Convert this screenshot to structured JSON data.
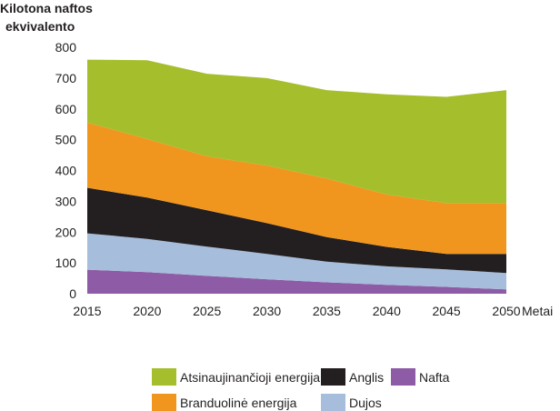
{
  "chart_data": {
    "type": "area",
    "stacked": true,
    "ylabel_lines": [
      "Kilotona naftos",
      "ekvivalento"
    ],
    "xlabel": "Metai",
    "x": [
      2015,
      2020,
      2025,
      2030,
      2035,
      2040,
      2045,
      2050
    ],
    "ylim": [
      0,
      800
    ],
    "yticks": [
      0,
      100,
      200,
      300,
      400,
      500,
      600,
      700,
      800
    ],
    "legend_position": "bottom",
    "series": [
      {
        "name": "Nafta",
        "color": "#8e5ba6",
        "values": [
          78,
          70,
          58,
          47,
          37,
          29,
          22,
          14
        ]
      },
      {
        "name": "Dujos",
        "color": "#a6bddb",
        "values": [
          118,
          108,
          95,
          82,
          67,
          60,
          57,
          53
        ]
      },
      {
        "name": "Anglis",
        "color": "#231f20",
        "values": [
          148,
          134,
          118,
          100,
          80,
          63,
          50,
          62
        ]
      },
      {
        "name": "Branduolinė energija",
        "color": "#f0961f",
        "values": [
          212,
          190,
          175,
          187,
          190,
          170,
          165,
          165
        ]
      },
      {
        "name": "Atsinaujinančioji energija",
        "color": "#a5be2c",
        "values": [
          204,
          256,
          268,
          284,
          287,
          325,
          345,
          367
        ]
      }
    ]
  }
}
